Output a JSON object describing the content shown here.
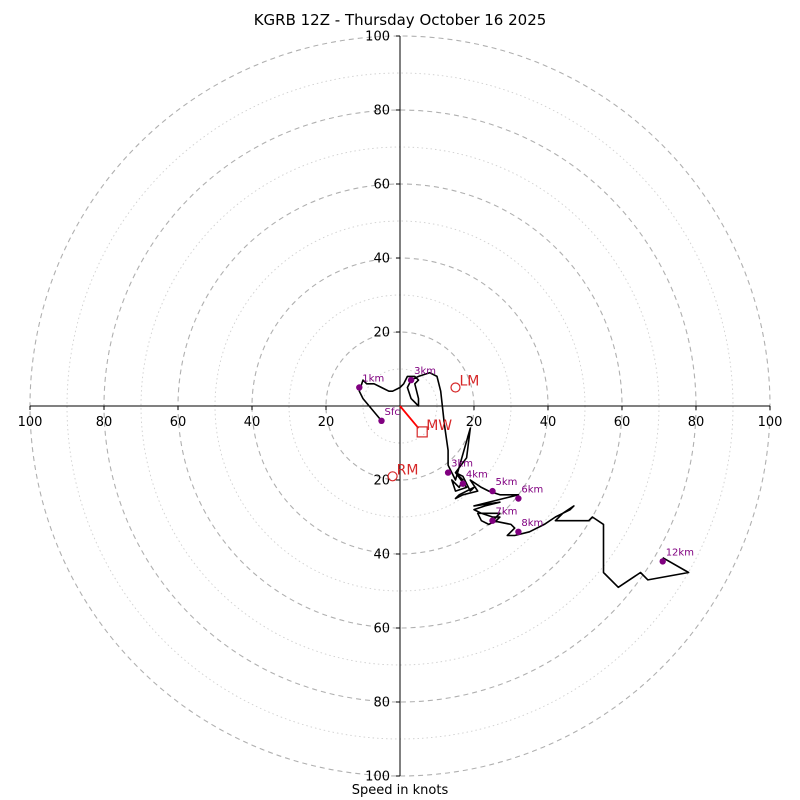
{
  "chart_data": {
    "type": "hodograph",
    "title": "KGRB 12Z - Thursday October 16 2025",
    "xlabel": "Speed in knots",
    "range": [
      -100,
      100
    ],
    "ring_spacing": 10,
    "tick_labels": {
      "x": [
        "100",
        "80",
        "60",
        "40",
        "20",
        "20",
        "40",
        "60",
        "80",
        "100"
      ],
      "y": [
        "100",
        "80",
        "60",
        "40",
        "20",
        "20",
        "40",
        "60",
        "80",
        "100"
      ]
    },
    "tick_values": [
      -100,
      -80,
      -60,
      -40,
      -20,
      20,
      40,
      60,
      80,
      100
    ],
    "grid": true,
    "trace_units": "u,v knots",
    "trace": [
      [
        -5,
        -4
      ],
      [
        -10,
        2
      ],
      [
        -11,
        4
      ],
      [
        -10,
        7
      ],
      [
        -9,
        6
      ],
      [
        -7,
        6
      ],
      [
        -5,
        5
      ],
      [
        -3,
        4
      ],
      [
        -2,
        4
      ],
      [
        0,
        5
      ],
      [
        1,
        6
      ],
      [
        2,
        8
      ],
      [
        4,
        8
      ],
      [
        5,
        7
      ],
      [
        4,
        6
      ],
      [
        5,
        2
      ],
      [
        5,
        0
      ],
      [
        3,
        2
      ],
      [
        2,
        5
      ],
      [
        3,
        7
      ],
      [
        5,
        8
      ],
      [
        8,
        9
      ],
      [
        10,
        8
      ],
      [
        11,
        4
      ],
      [
        12,
        -5
      ],
      [
        13,
        -12
      ],
      [
        13,
        -16
      ],
      [
        14,
        -18
      ],
      [
        15,
        -20
      ],
      [
        19,
        -6
      ],
      [
        18,
        -14
      ],
      [
        15,
        -18
      ],
      [
        17,
        -20
      ],
      [
        16,
        -22
      ],
      [
        14,
        -20
      ],
      [
        15,
        -23
      ],
      [
        18,
        -22
      ],
      [
        15,
        -18
      ],
      [
        17,
        -19
      ],
      [
        19,
        -23
      ],
      [
        20,
        -22
      ],
      [
        16,
        -24
      ],
      [
        15,
        -25
      ],
      [
        17,
        -24
      ],
      [
        21,
        -23
      ],
      [
        19,
        -20
      ],
      [
        22,
        -22
      ],
      [
        24,
        -23
      ],
      [
        27,
        -24
      ],
      [
        32,
        -24
      ],
      [
        28,
        -25
      ],
      [
        20,
        -27
      ],
      [
        27,
        -26
      ],
      [
        23,
        -27
      ],
      [
        20,
        -28
      ],
      [
        22,
        -29
      ],
      [
        25,
        -30
      ],
      [
        27,
        -30
      ],
      [
        26,
        -31
      ],
      [
        24,
        -32
      ],
      [
        22,
        -31
      ],
      [
        21,
        -29
      ],
      [
        25,
        -29
      ],
      [
        27,
        -29
      ],
      [
        25,
        -31
      ],
      [
        30,
        -32
      ],
      [
        31,
        -33
      ],
      [
        29,
        -35
      ],
      [
        31,
        -35
      ],
      [
        35,
        -34
      ],
      [
        39,
        -32
      ],
      [
        42,
        -30
      ],
      [
        44,
        -29
      ],
      [
        46,
        -28
      ],
      [
        47,
        -27
      ],
      [
        44,
        -29
      ],
      [
        42,
        -31
      ],
      [
        44,
        -31
      ],
      [
        47,
        -31
      ],
      [
        51,
        -31
      ],
      [
        52,
        -30
      ],
      [
        55,
        -32
      ],
      [
        55,
        -37
      ],
      [
        55,
        -45
      ],
      [
        59,
        -49
      ],
      [
        65,
        -45
      ],
      [
        67,
        -47
      ],
      [
        78,
        -45
      ],
      [
        71,
        -41
      ]
    ],
    "height_markers": [
      {
        "label": "Sfc",
        "u": -5,
        "v": -4
      },
      {
        "label": "1km",
        "u": -11,
        "v": 5
      },
      {
        "label": "3km",
        "u": 3,
        "v": 7
      },
      {
        "label": "3km",
        "u": 13,
        "v": -18
      },
      {
        "label": "4km",
        "u": 17,
        "v": -21
      },
      {
        "label": "5km",
        "u": 25,
        "v": -23
      },
      {
        "label": "6km",
        "u": 32,
        "v": -25
      },
      {
        "label": "7km",
        "u": 25,
        "v": -31
      },
      {
        "label": "8km",
        "u": 32,
        "v": -34
      },
      {
        "label": "12km",
        "u": 71,
        "v": -42
      }
    ],
    "storm_motion": [
      {
        "label": "LM",
        "u": 15,
        "v": 5,
        "marker": "circle"
      },
      {
        "label": "RM",
        "u": -2,
        "v": -19,
        "marker": "circle"
      },
      {
        "label": "MW",
        "u": 6,
        "v": -7,
        "marker": "square"
      }
    ],
    "shear_vector": {
      "from": [
        0,
        0
      ],
      "to": [
        5,
        -6
      ]
    },
    "colors": {
      "trace": "#000000",
      "height_marker": "#800080",
      "storm_motion": "#d62728",
      "shear_vector": "#ff0000",
      "grid": "#bbbbbb"
    }
  }
}
